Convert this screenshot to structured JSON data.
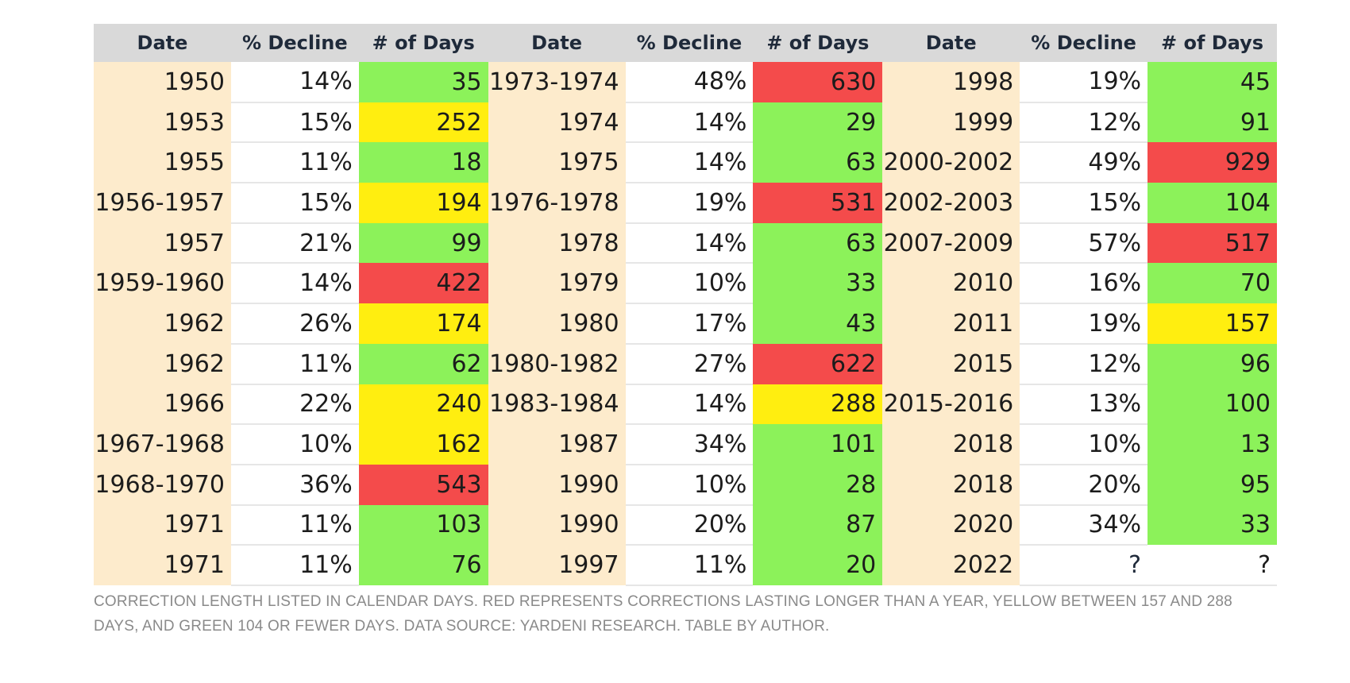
{
  "chart_data": {
    "type": "table",
    "columns": [
      "Date",
      "% Decline",
      "# of Days",
      "Date",
      "% Decline",
      "# of Days",
      "Date",
      "% Decline",
      "# of Days"
    ],
    "groups": [
      {
        "rows": [
          {
            "date": "1950",
            "decline": "14%",
            "days": "35",
            "level": "green"
          },
          {
            "date": "1953",
            "decline": "15%",
            "days": "252",
            "level": "yellow"
          },
          {
            "date": "1955",
            "decline": "11%",
            "days": "18",
            "level": "green"
          },
          {
            "date": "1956-1957",
            "decline": "15%",
            "days": "194",
            "level": "yellow"
          },
          {
            "date": "1957",
            "decline": "21%",
            "days": "99",
            "level": "green"
          },
          {
            "date": "1959-1960",
            "decline": "14%",
            "days": "422",
            "level": "red"
          },
          {
            "date": "1962",
            "decline": "26%",
            "days": "174",
            "level": "yellow"
          },
          {
            "date": "1962",
            "decline": "11%",
            "days": "62",
            "level": "green"
          },
          {
            "date": "1966",
            "decline": "22%",
            "days": "240",
            "level": "yellow"
          },
          {
            "date": "1967-1968",
            "decline": "10%",
            "days": "162",
            "level": "yellow"
          },
          {
            "date": "1968-1970",
            "decline": "36%",
            "days": "543",
            "level": "red"
          },
          {
            "date": "1971",
            "decline": "11%",
            "days": "103",
            "level": "green"
          },
          {
            "date": "1971",
            "decline": "11%",
            "days": "76",
            "level": "green"
          }
        ]
      },
      {
        "rows": [
          {
            "date": "1973-1974",
            "decline": "48%",
            "days": "630",
            "level": "red"
          },
          {
            "date": "1974",
            "decline": "14%",
            "days": "29",
            "level": "green"
          },
          {
            "date": "1975",
            "decline": "14%",
            "days": "63",
            "level": "green"
          },
          {
            "date": "1976-1978",
            "decline": "19%",
            "days": "531",
            "level": "red"
          },
          {
            "date": "1978",
            "decline": "14%",
            "days": "63",
            "level": "green"
          },
          {
            "date": "1979",
            "decline": "10%",
            "days": "33",
            "level": "green"
          },
          {
            "date": "1980",
            "decline": "17%",
            "days": "43",
            "level": "green"
          },
          {
            "date": "1980-1982",
            "decline": "27%",
            "days": "622",
            "level": "red"
          },
          {
            "date": "1983-1984",
            "decline": "14%",
            "days": "288",
            "level": "yellow"
          },
          {
            "date": "1987",
            "decline": "34%",
            "days": "101",
            "level": "green"
          },
          {
            "date": "1990",
            "decline": "10%",
            "days": "28",
            "level": "green"
          },
          {
            "date": "1990",
            "decline": "20%",
            "days": "87",
            "level": "green"
          },
          {
            "date": "1997",
            "decline": "11%",
            "days": "20",
            "level": "green"
          }
        ]
      },
      {
        "rows": [
          {
            "date": "1998",
            "decline": "19%",
            "days": "45",
            "level": "green"
          },
          {
            "date": "1999",
            "decline": "12%",
            "days": "91",
            "level": "green"
          },
          {
            "date": "2000-2002",
            "decline": "49%",
            "days": "929",
            "level": "red"
          },
          {
            "date": "2002-2003",
            "decline": "15%",
            "days": "104",
            "level": "green"
          },
          {
            "date": "2007-2009",
            "decline": "57%",
            "days": "517",
            "level": "red"
          },
          {
            "date": "2010",
            "decline": "16%",
            "days": "70",
            "level": "green"
          },
          {
            "date": "2011",
            "decline": "19%",
            "days": "157",
            "level": "yellow"
          },
          {
            "date": "2015",
            "decline": "12%",
            "days": "96",
            "level": "green"
          },
          {
            "date": "2015-2016",
            "decline": "13%",
            "days": "100",
            "level": "green"
          },
          {
            "date": "2018",
            "decline": "10%",
            "days": "13",
            "level": "green"
          },
          {
            "date": "2018",
            "decline": "20%",
            "days": "95",
            "level": "green"
          },
          {
            "date": "2020",
            "decline": "34%",
            "days": "33",
            "level": "green"
          },
          {
            "date": "2022",
            "decline": "?",
            "days": "?",
            "level": "none"
          }
        ]
      }
    ],
    "colors": {
      "red": "#f44b4b",
      "yellow": "#ffee10",
      "green": "#8cf25a",
      "date_bg": "#fdebcc",
      "header_bg": "#d9d9d9",
      "decline_text": "#f23545"
    }
  },
  "caption": "CORRECTION LENGTH LISTED IN CALENDAR DAYS. RED REPRESENTS CORRECTIONS LASTING LONGER THAN A YEAR, YELLOW BETWEEN 157 AND 288 DAYS, AND GREEN 104 OR FEWER DAYS. DATA SOURCE: YARDENI RESEARCH. TABLE BY AUTHOR."
}
